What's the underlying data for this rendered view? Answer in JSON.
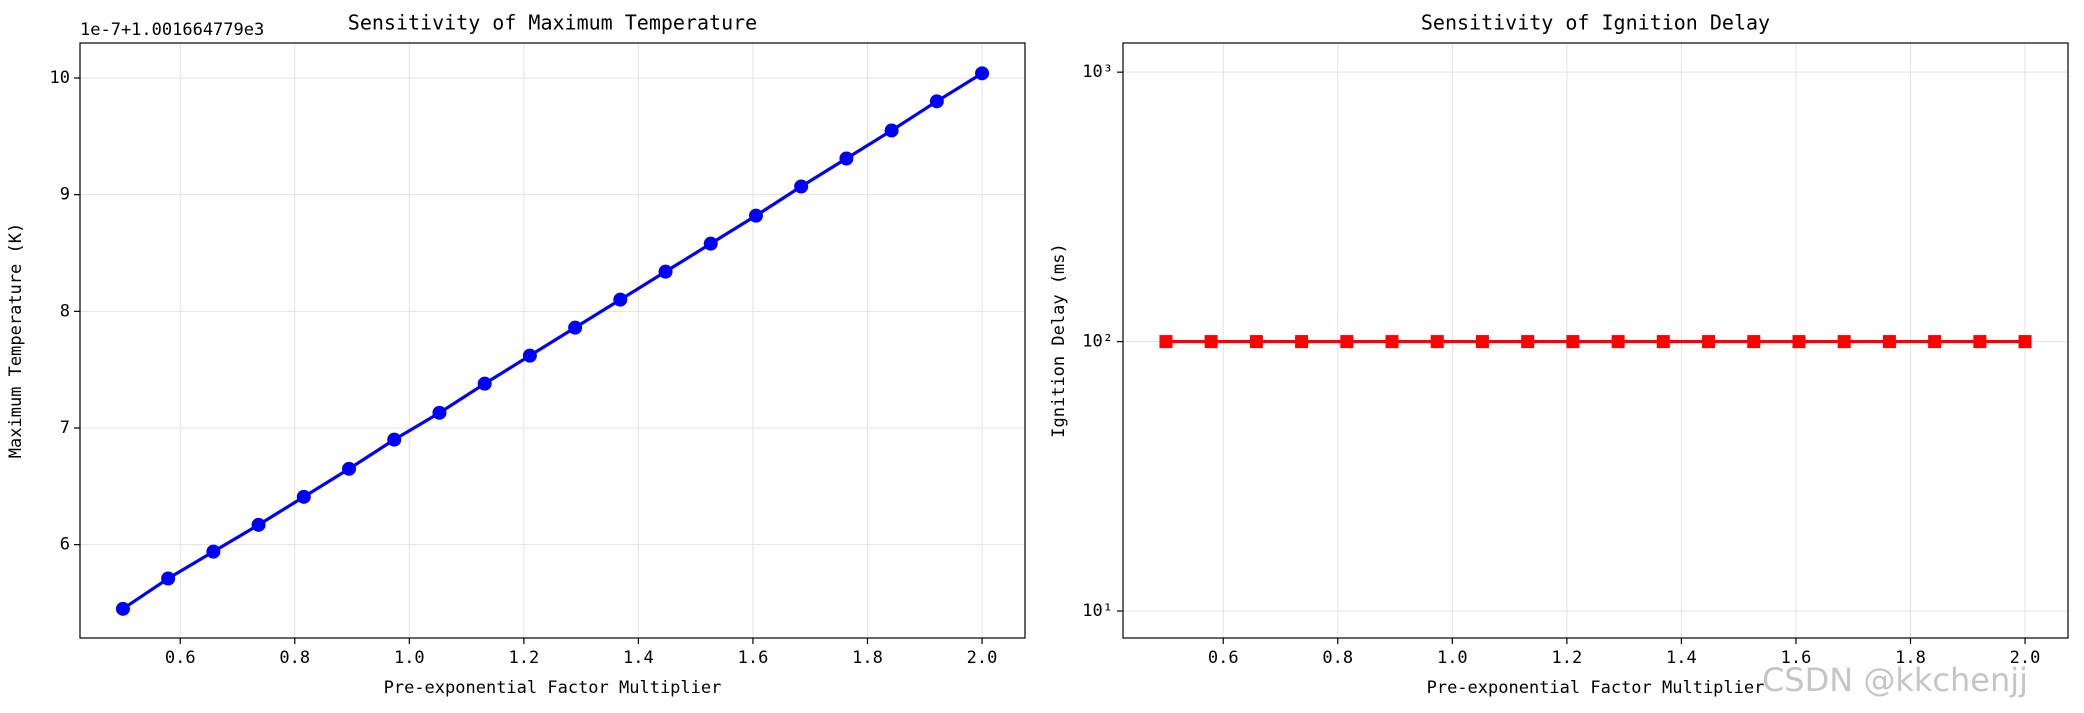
{
  "chart_data": [
    {
      "type": "line",
      "title": "Sensitivity of Maximum Temperature",
      "xlabel": "Pre-exponential Factor Multiplier",
      "ylabel": "Maximum Temperature (K)",
      "offset_text": "1e-7+1.001664779e3",
      "x": [
        0.5,
        0.5789,
        0.6579,
        0.7368,
        0.8158,
        0.8947,
        0.9737,
        1.0526,
        1.1316,
        1.2105,
        1.2895,
        1.3684,
        1.4474,
        1.5263,
        1.6053,
        1.6842,
        1.7632,
        1.8421,
        1.9211,
        2.0
      ],
      "series": [
        {
          "color": "#0000ff",
          "marker": "circle",
          "values": [
            5.45,
            5.71,
            5.94,
            6.17,
            6.41,
            6.65,
            6.9,
            7.13,
            7.38,
            7.62,
            7.86,
            8.1,
            8.34,
            8.58,
            8.82,
            9.07,
            9.31,
            9.55,
            9.8,
            10.04
          ]
        }
      ],
      "xlim": [
        0.425,
        2.075
      ],
      "ylim": [
        5.2,
        10.3
      ],
      "xticks": [
        0.6,
        0.8,
        {
          "value": 1,
          "label": "1.0"
        },
        1.2,
        1.4,
        1.6,
        1.8,
        {
          "value": 2,
          "label": "2.0"
        }
      ],
      "yticks": [
        6,
        7,
        8,
        9,
        10
      ],
      "grid": true,
      "yscale": "linear"
    },
    {
      "type": "line",
      "title": "Sensitivity of Ignition Delay",
      "xlabel": "Pre-exponential Factor Multiplier",
      "ylabel": "Ignition Delay (ms)",
      "x": [
        0.5,
        0.5789,
        0.6579,
        0.7368,
        0.8158,
        0.8947,
        0.9737,
        1.0526,
        1.1316,
        1.2105,
        1.2895,
        1.3684,
        1.4474,
        1.5263,
        1.6053,
        1.6842,
        1.7632,
        1.8421,
        1.9211,
        2.0
      ],
      "series": [
        {
          "color": "#ff0000",
          "marker": "square",
          "values": [
            100,
            100,
            100,
            100,
            100,
            100,
            100,
            100,
            100,
            100,
            100,
            100,
            100,
            100,
            100,
            100,
            100,
            100,
            100,
            100
          ]
        }
      ],
      "xlim": [
        0.425,
        2.075
      ],
      "ylim": [
        7.94,
        1283
      ],
      "xticks": [
        0.6,
        0.8,
        {
          "value": 1,
          "label": "1.0"
        },
        1.2,
        1.4,
        1.6,
        1.8,
        {
          "value": 2,
          "label": "2.0"
        }
      ],
      "yticks": [
        {
          "value": 10,
          "label": "10¹"
        },
        {
          "value": 100,
          "label": "10²"
        },
        {
          "value": 1000,
          "label": "10³"
        }
      ],
      "grid": true,
      "yscale": "log"
    }
  ],
  "watermark": "CSDN @kkchenjj"
}
